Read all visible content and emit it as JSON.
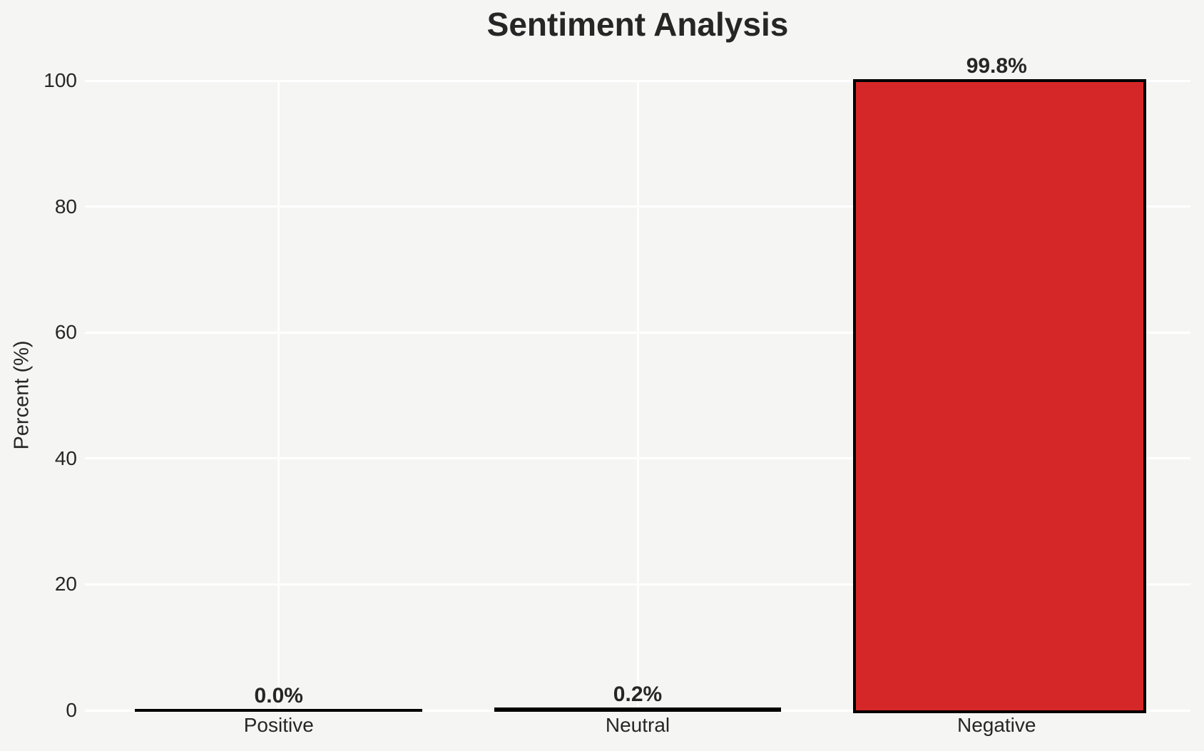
{
  "chart": {
    "title": "Sentiment Analysis",
    "ylabel": "Percent (%)"
  },
  "colors": {
    "background": "#f5f5f3",
    "grid": "#ffffff",
    "bar_fill": "#d62728",
    "bar_edge": "#000000",
    "text": "#262626"
  },
  "chart_data": {
    "type": "bar",
    "categories": [
      "Positive",
      "Neutral",
      "Negative"
    ],
    "values": [
      0.0,
      0.2,
      99.8
    ],
    "bar_labels": [
      "0.0%",
      "0.2%",
      "99.8%"
    ],
    "title": "Sentiment Analysis",
    "xlabel": "",
    "ylabel": "Percent (%)",
    "ylim": [
      0,
      100
    ],
    "yticks": [
      0,
      20,
      40,
      60,
      80,
      100
    ],
    "grid": true,
    "gridline_orientation": "horizontal-and-category-vertical",
    "legend": false,
    "bar_color": "#d62728",
    "bar_edge_color": "#000000"
  }
}
